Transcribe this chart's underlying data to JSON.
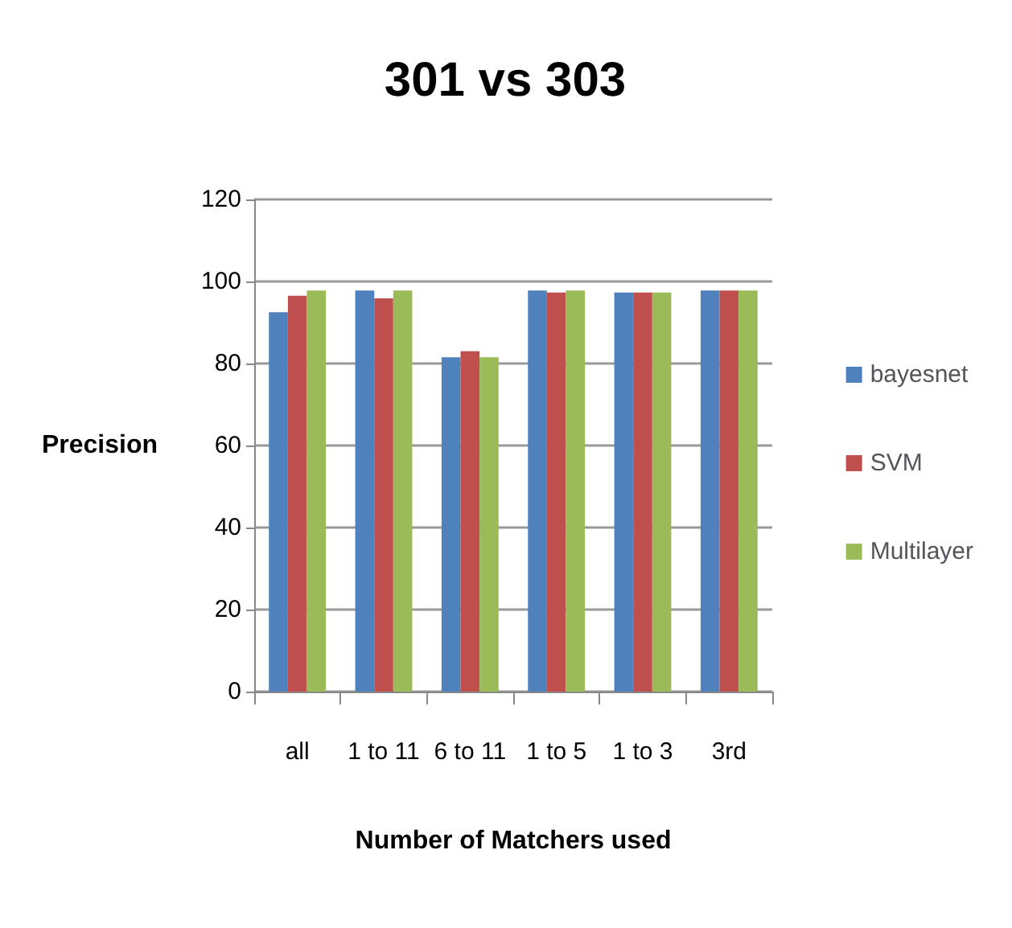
{
  "chart_data": {
    "type": "bar",
    "title": "301 vs 303",
    "xlabel": "Number of Matchers used",
    "ylabel": "Precision",
    "categories": [
      "all",
      "1 to 11",
      "6 to 11",
      "1 to 5",
      "1 to 3",
      "3rd"
    ],
    "series": [
      {
        "name": "bayesnet",
        "color": "#4f81bd",
        "values": [
          92.5,
          97.8,
          81.5,
          97.8,
          97.3,
          97.8
        ]
      },
      {
        "name": "SVM",
        "color": "#c0504d",
        "values": [
          96.5,
          95.9,
          83,
          97.3,
          97.3,
          97.8
        ]
      },
      {
        "name": "Multilayer",
        "color": "#9bbb59",
        "values": [
          97.8,
          97.8,
          81.5,
          97.8,
          97.3,
          97.8
        ]
      }
    ],
    "ylim": [
      0,
      120
    ],
    "yticks": [
      0,
      20,
      40,
      60,
      80,
      100,
      120
    ],
    "grid": "y",
    "legend": "right"
  }
}
